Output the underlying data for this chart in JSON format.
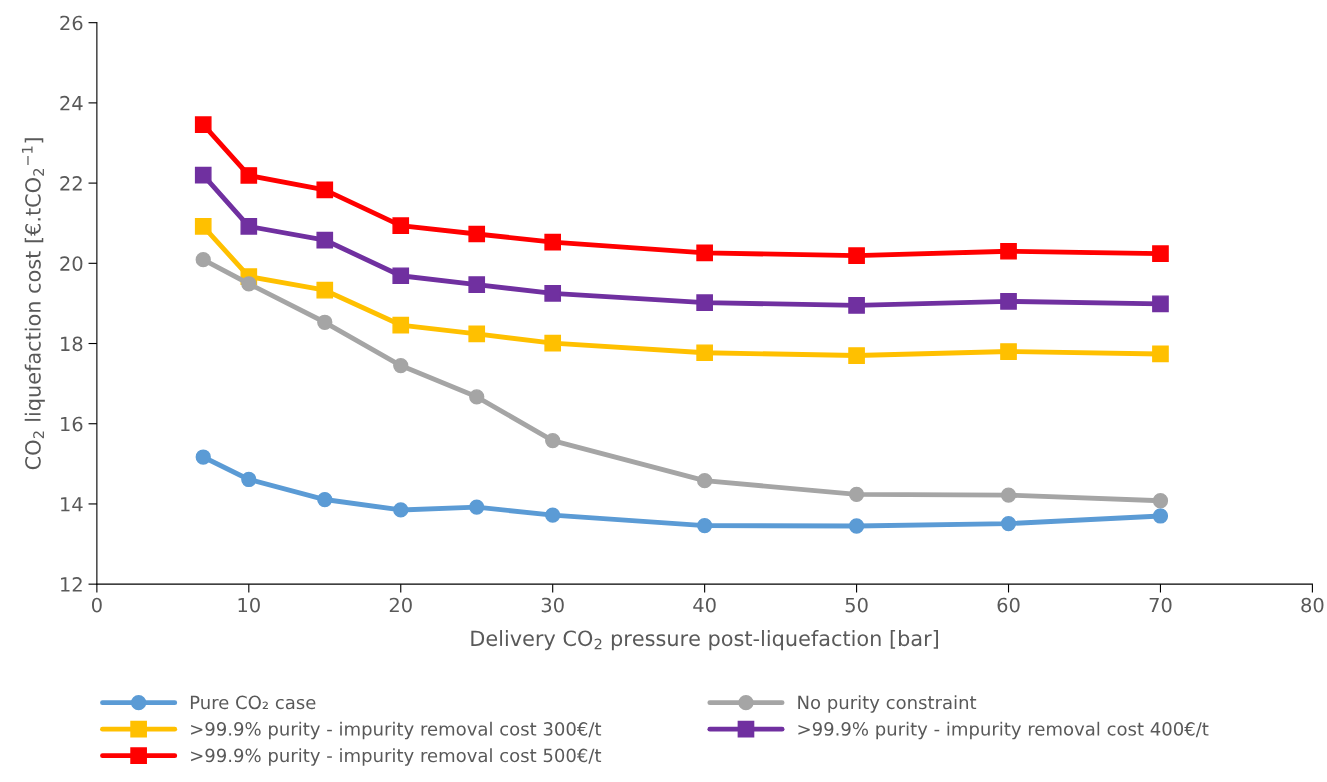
{
  "chart_data": {
    "type": "line",
    "xlabel": "Delivery CO$_{2}$ pressure post-liquefaction [bar]",
    "ylabel": "CO$_{2}$ liquefaction cost [€.tCO$_{2}$$^{−1}$]",
    "x": [
      7,
      10,
      15,
      20,
      25,
      30,
      40,
      50,
      60,
      70
    ],
    "xlim": [
      0,
      80
    ],
    "xticks": [
      0,
      10,
      20,
      30,
      40,
      50,
      60,
      70,
      80
    ],
    "ylim": [
      12,
      26
    ],
    "yticks": [
      12,
      14,
      16,
      18,
      20,
      22,
      24,
      26
    ],
    "grid": false,
    "legend": "bottom",
    "line_style": "solid",
    "series": [
      {
        "name": "Pure CO₂ case",
        "color": "#5b9bd5",
        "marker": "circle",
        "values": [
          15.17,
          14.61,
          14.11,
          13.85,
          13.92,
          13.72,
          13.46,
          13.45,
          13.51,
          13.7
        ]
      },
      {
        "name": "No purity constraint",
        "color": "#a5a5a5",
        "marker": "circle",
        "values": [
          20.09,
          19.49,
          18.53,
          17.45,
          16.67,
          15.58,
          14.58,
          14.24,
          14.22,
          14.08
        ]
      },
      {
        "name": ">99.9% purity - impurity removal cost 300€/t",
        "color": "#ffc000",
        "marker": "square",
        "values": [
          20.92,
          19.67,
          19.33,
          18.46,
          18.24,
          18.01,
          17.77,
          17.7,
          17.8,
          17.74
        ]
      },
      {
        "name": ">99.9% purity - impurity removal cost 400€/t",
        "color": "#7030a0",
        "marker": "square",
        "values": [
          22.2,
          20.92,
          20.58,
          19.69,
          19.47,
          19.25,
          19.02,
          18.95,
          19.05,
          18.99
        ]
      },
      {
        "name": ">99.9% purity - impurity removal cost 500€/t",
        "color": "#ff0000",
        "marker": "square",
        "values": [
          23.46,
          22.19,
          21.83,
          20.94,
          20.73,
          20.53,
          20.26,
          20.19,
          20.3,
          20.24
        ]
      }
    ]
  }
}
